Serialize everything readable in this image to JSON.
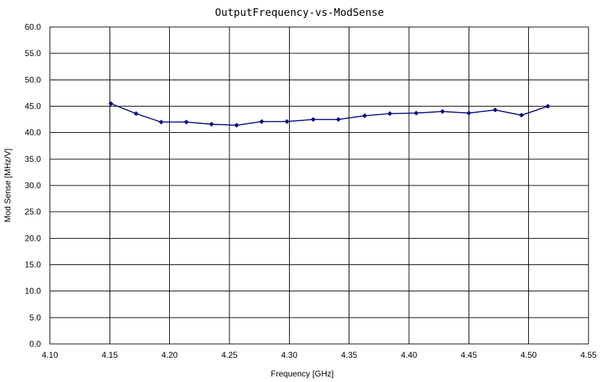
{
  "chart_data": {
    "type": "line",
    "title": "OutputFrequency-vs-ModSense",
    "xlabel": "Frequency [GHz]",
    "ylabel": "Mod Sense [MHz/V]",
    "xlim": [
      4.1,
      4.55
    ],
    "ylim": [
      0.0,
      60.0
    ],
    "x_ticks": [
      "4.10",
      "4.15",
      "4.20",
      "4.25",
      "4.30",
      "4.35",
      "4.40",
      "4.45",
      "4.50",
      "4.55"
    ],
    "y_ticks": [
      "0.0",
      "5.0",
      "10.0",
      "15.0",
      "20.0",
      "25.0",
      "30.0",
      "35.0",
      "40.0",
      "45.0",
      "50.0",
      "55.0",
      "60.0"
    ],
    "grid": true,
    "legend": "none",
    "colors": {
      "series": "#000080",
      "grid": "#000000"
    },
    "series": [
      {
        "x": [
          4.151,
          4.172,
          4.193,
          4.214,
          4.235,
          4.256,
          4.277,
          4.298,
          4.32,
          4.341,
          4.363,
          4.384,
          4.406,
          4.428,
          4.45,
          4.472,
          4.494,
          4.516
        ],
        "y": [
          45.5,
          43.6,
          42.0,
          42.0,
          41.6,
          41.4,
          42.1,
          42.1,
          42.5,
          42.5,
          43.2,
          43.6,
          43.7,
          44.0,
          43.7,
          44.3,
          43.3,
          45.0
        ]
      }
    ]
  }
}
